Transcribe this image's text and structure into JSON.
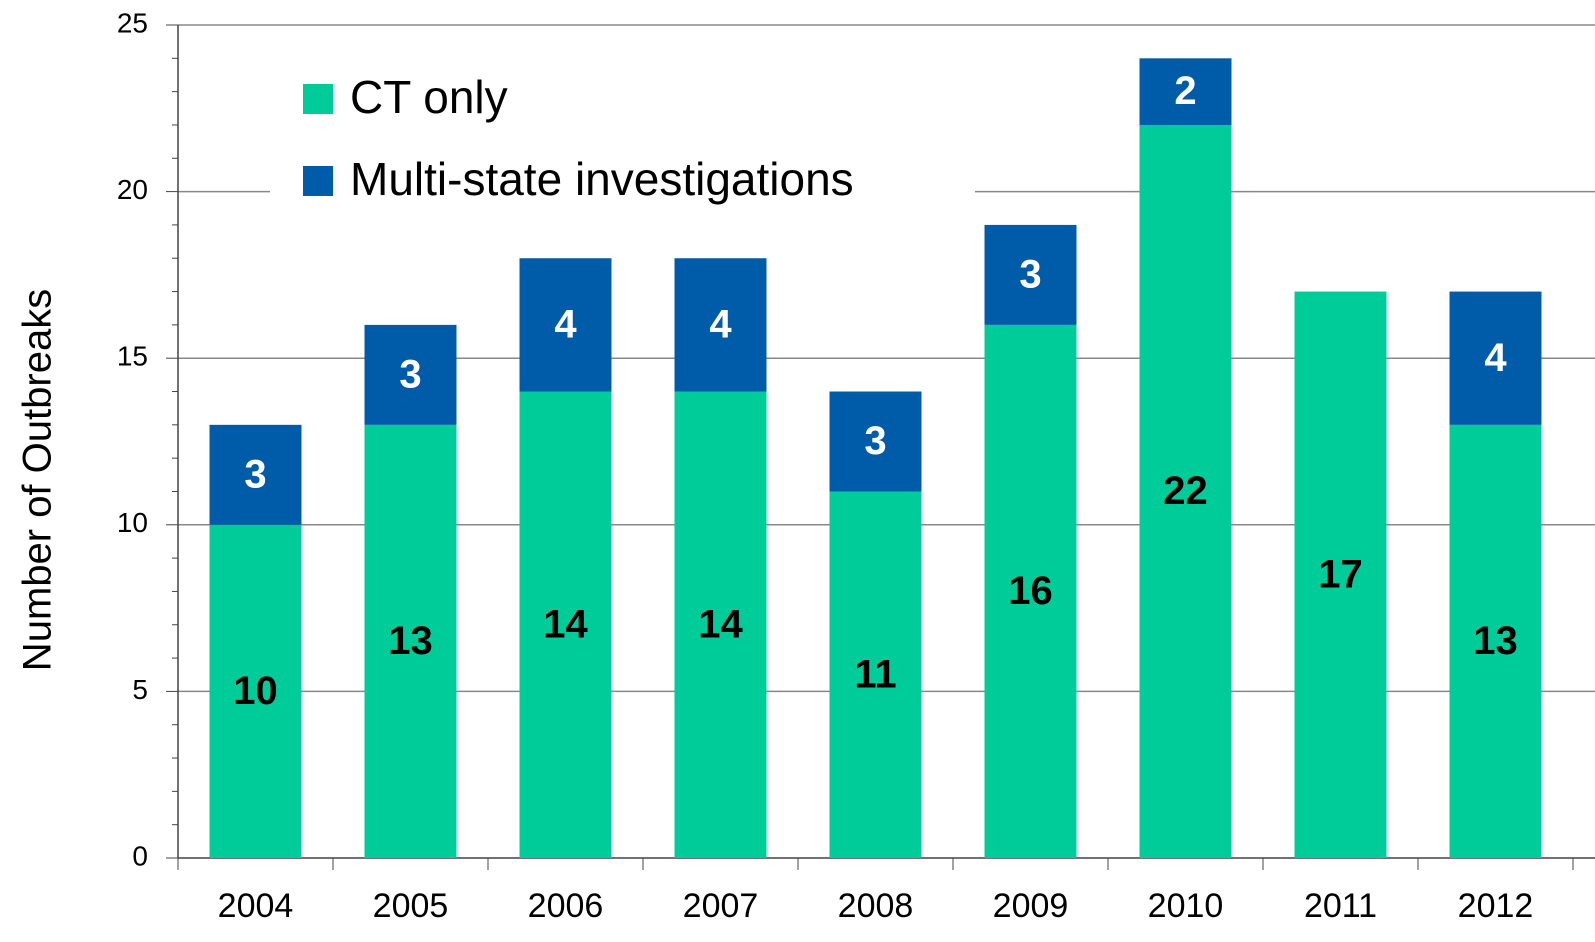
{
  "chart_data": {
    "type": "stacked-bar",
    "y_axis_label": "Number of Outbreaks",
    "categories": [
      "2004",
      "2005",
      "2006",
      "2007",
      "2008",
      "2009",
      "2010",
      "2011",
      "2012"
    ],
    "series": [
      {
        "name": "CT only",
        "color": "#00cc99",
        "label_color": "#000000",
        "values": [
          10,
          13,
          14,
          14,
          11,
          16,
          22,
          17,
          13
        ]
      },
      {
        "name": "Multi-state investigations",
        "color": "#005ca8",
        "label_color": "#ffffff",
        "values": [
          3,
          3,
          4,
          4,
          3,
          3,
          2,
          null,
          4
        ]
      }
    ],
    "ylim": [
      0,
      25
    ],
    "yticks": [
      0,
      5,
      10,
      15,
      20,
      25
    ],
    "grid": true,
    "legend": "top-left"
  }
}
